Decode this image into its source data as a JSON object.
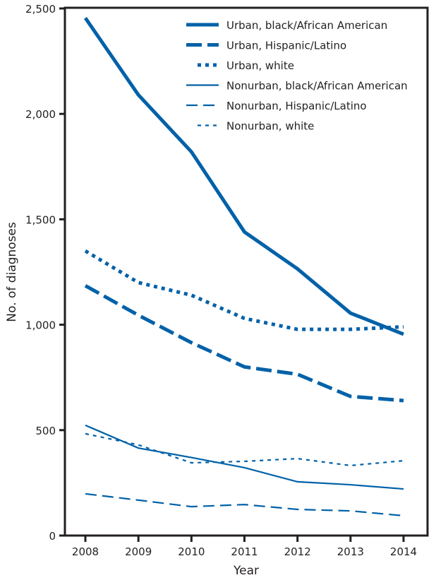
{
  "chart_data": {
    "type": "line",
    "xlabel": "Year",
    "ylabel": "No. of diagnoses",
    "x": [
      2008,
      2009,
      2010,
      2011,
      2012,
      2013,
      2014
    ],
    "ylim": [
      0,
      2500
    ],
    "yticks": [
      0,
      500,
      1000,
      1500,
      2000,
      2500
    ],
    "ytick_labels": [
      "0",
      "500",
      "1,000",
      "1,500",
      "2,000",
      "2,500"
    ],
    "grid": false,
    "legend_position": "top-right",
    "color": "#0061a8",
    "series": [
      {
        "name": "Urban, black/African American",
        "style": "solid-thick",
        "values": [
          2455,
          2090,
          1820,
          1440,
          1265,
          1055,
          955
        ]
      },
      {
        "name": "Urban, Hispanic/Latino",
        "style": "dashed-thick",
        "values": [
          1185,
          1045,
          915,
          800,
          765,
          660,
          640
        ]
      },
      {
        "name": "Urban, white",
        "style": "dotted-thick",
        "values": [
          1350,
          1200,
          1140,
          1030,
          978,
          978,
          990
        ]
      },
      {
        "name": "Nonurban, black/African American",
        "style": "solid-thin",
        "values": [
          523,
          415,
          370,
          322,
          255,
          241,
          221
        ]
      },
      {
        "name": "Nonurban, Hispanic/Latino",
        "style": "dashed-thin",
        "values": [
          198,
          168,
          137,
          147,
          124,
          117,
          94
        ]
      },
      {
        "name": "Nonurban, white",
        "style": "dotted-thin",
        "values": [
          483,
          430,
          345,
          352,
          365,
          332,
          355
        ]
      }
    ]
  }
}
